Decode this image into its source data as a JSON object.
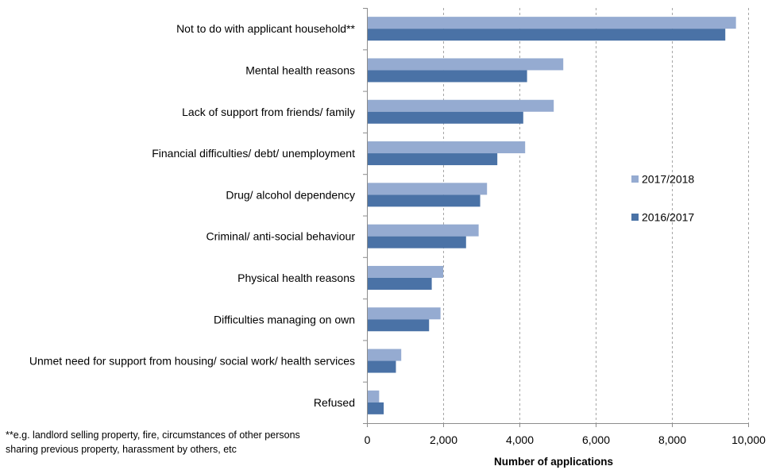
{
  "chart_data": {
    "type": "bar",
    "orientation": "horizontal",
    "categories": [
      "Not to do with applicant household**",
      "Mental health reasons",
      "Lack of support from friends/ family",
      "Financial difficulties/ debt/ unemployment",
      "Drug/ alcohol dependency",
      "Criminal/ anti-social behaviour",
      "Physical health reasons",
      "Difficulties managing on own",
      "Unmet need for support from housing/ social work/ health services",
      "Refused"
    ],
    "series": [
      {
        "name": "2017/2018",
        "color": "#95abd1",
        "values": [
          9680,
          5150,
          4900,
          4150,
          3150,
          2930,
          2000,
          1930,
          900,
          320
        ]
      },
      {
        "name": "2016/2017",
        "color": "#4a72a6",
        "values": [
          9400,
          4200,
          4100,
          3420,
          2970,
          2600,
          1700,
          1630,
          760,
          440
        ]
      }
    ],
    "xlabel": "Number of applications",
    "ylabel": "",
    "xlim": [
      0,
      10000
    ],
    "xticks": [
      0,
      2000,
      4000,
      6000,
      8000,
      10000
    ],
    "xtick_labels": [
      "0",
      "2,000",
      "4,000",
      "6,000",
      "8,000",
      "10,000"
    ],
    "grid": "vertical dashed",
    "legend_position": "right"
  },
  "footnote": {
    "line1": "**e.g. landlord selling property, fire, circumstances of other persons",
    "line2": "sharing previous property, harassment by others, etc"
  }
}
